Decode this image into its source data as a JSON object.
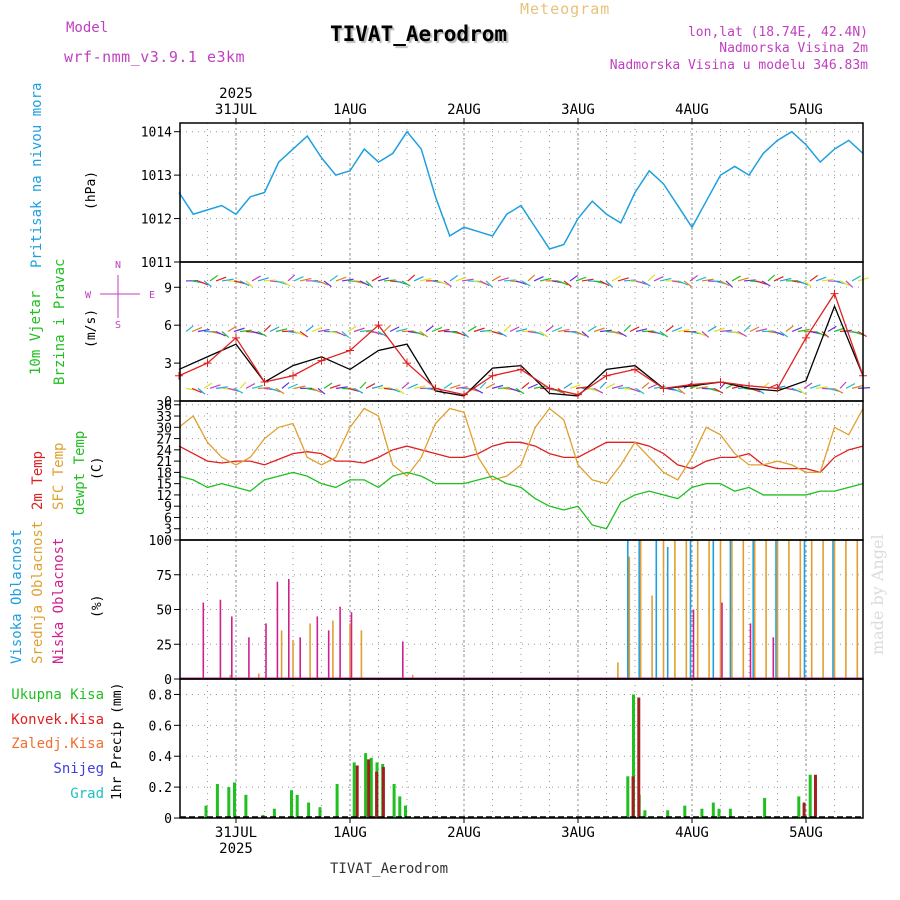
{
  "header": {
    "model_label": "Model",
    "model_name": "wrf-nmm_v3.9.1 e3km",
    "product": "Meteogram",
    "station": "TIVAT_Aerodrom",
    "lonlat": "lon,lat (18.74E, 42.4N)",
    "elev": "Nadmorska Visina 2m",
    "elev_model": "Nadmorska Visina u modelu 346.83m",
    "footer_station": "TIVAT_Aerodrom",
    "credit": "made by Angel"
  },
  "colors": {
    "magenta": "#c040c0",
    "blue": "#1ea0e0",
    "green": "#20c020",
    "orange": "#e0a030",
    "red": "#e02020",
    "purple": "#6030e0",
    "cyan": "#20c0c0"
  },
  "chart_data": [
    {
      "type": "line",
      "panel": "pressure",
      "title": "Pritisak na nivou mora",
      "ylabel": "(hPa)",
      "ylim": [
        1011,
        1014.2
      ],
      "yticks": [
        "1011",
        "1012",
        "1013",
        "1014"
      ],
      "xlabels_top": [
        "31JUL",
        "1AUG",
        "2AUG",
        "3AUG",
        "4AUG",
        "5AUG"
      ],
      "year": "2025",
      "x_days": [
        0,
        0.125,
        0.25,
        0.375,
        0.5,
        0.625,
        0.75,
        0.875,
        1,
        1.125,
        1.25,
        1.375,
        1.5,
        1.625,
        1.75,
        1.875,
        2,
        2.125,
        2.25,
        2.375,
        2.5,
        2.625,
        2.75,
        2.875,
        3,
        3.125,
        3.25,
        3.375,
        3.5,
        3.625,
        3.75,
        3.875,
        4,
        4.125,
        4.25,
        4.375,
        4.5,
        4.625,
        4.75,
        4.875,
        5,
        5.125,
        5.25,
        5.375,
        5.5,
        5.625,
        5.75,
        5.875,
        6
      ],
      "values": [
        1012.6,
        1012.1,
        1012.2,
        1012.3,
        1012.1,
        1012.5,
        1012.6,
        1013.3,
        1013.6,
        1013.9,
        1013.4,
        1013.0,
        1013.1,
        1013.6,
        1013.3,
        1013.5,
        1014.0,
        1013.6,
        1012.5,
        1011.6,
        1011.8,
        1011.7,
        1011.6,
        1012.1,
        1012.3,
        1011.8,
        1011.3,
        1011.4,
        1012.0,
        1012.4,
        1012.1,
        1011.9,
        1012.6,
        1013.1,
        1012.8,
        1012.3,
        1011.8,
        1012.4,
        1013.0,
        1013.2,
        1013.0,
        1013.5,
        1013.8,
        1014.0,
        1013.7,
        1013.3,
        1013.6,
        1013.8,
        1013.5
      ],
      "color": "#1ea0e0"
    },
    {
      "type": "line",
      "panel": "wind",
      "title": "10m Vjetar",
      "title2": "Brzina i Pravac",
      "ylabel": "(m/s)",
      "ylim": [
        0,
        11
      ],
      "yticks": [
        "0",
        "3",
        "6",
        "9"
      ],
      "compass": [
        "N",
        "W",
        "E",
        "S"
      ],
      "arrow_rows": [
        1,
        5.5,
        9.5
      ],
      "x_days": [
        0,
        0.25,
        0.5,
        0.75,
        1,
        1.25,
        1.5,
        1.75,
        2,
        2.25,
        2.5,
        2.75,
        3,
        3.25,
        3.5,
        3.75,
        4,
        4.25,
        4.5,
        4.75,
        5,
        5.25,
        5.5,
        5.75,
        6
      ],
      "speed": [
        2.5,
        3.5,
        4.5,
        1.5,
        2.8,
        3.5,
        2.5,
        4.0,
        4.5,
        0.8,
        0.4,
        2.6,
        2.8,
        0.6,
        0.4,
        2.5,
        2.8,
        1.0,
        1.2,
        1.5,
        1.0,
        0.8,
        1.6,
        7.5,
        2.0
      ],
      "gust": [
        2.0,
        3.0,
        5.0,
        1.5,
        2.0,
        3.2,
        4.0,
        6.0,
        3.0,
        1.0,
        0.5,
        2.0,
        2.5,
        1.0,
        0.5,
        2.0,
        2.5,
        1.0,
        1.3,
        1.5,
        1.2,
        1.0,
        5.0,
        8.5,
        2.0
      ],
      "speed_color": "#000000",
      "gust_color": "#e02020"
    },
    {
      "type": "line",
      "panel": "temperature",
      "titles": [
        "2m Temp",
        "SFC Temp",
        "dewpt Temp"
      ],
      "ylabel": "(C)",
      "ylim": [
        0,
        37
      ],
      "yticks": [
        "3",
        "6",
        "9",
        "12",
        "15",
        "18",
        "21",
        "24",
        "27",
        "30",
        "33",
        "36"
      ],
      "x_days": [
        0,
        0.125,
        0.25,
        0.375,
        0.5,
        0.625,
        0.75,
        0.875,
        1,
        1.125,
        1.25,
        1.375,
        1.5,
        1.625,
        1.75,
        1.875,
        2,
        2.125,
        2.25,
        2.375,
        2.5,
        2.625,
        2.75,
        2.875,
        3,
        3.125,
        3.25,
        3.375,
        3.5,
        3.625,
        3.75,
        3.875,
        4,
        4.125,
        4.25,
        4.375,
        4.5,
        4.625,
        4.75,
        4.875,
        5,
        5.125,
        5.25,
        5.375,
        5.5,
        5.625,
        5.75,
        5.875,
        6
      ],
      "series": [
        {
          "name": "2m Temp",
          "color": "#e02020",
          "values": [
            25,
            23,
            21,
            20.5,
            21,
            21,
            20,
            21.5,
            23,
            23.5,
            23,
            21,
            21,
            20.5,
            22,
            24,
            25,
            24,
            23,
            22,
            22,
            23,
            25,
            26,
            26,
            25,
            23,
            22,
            22,
            24,
            26,
            26,
            26,
            25,
            23,
            20,
            19,
            21,
            22,
            22,
            23,
            20,
            19,
            19,
            19,
            18,
            22,
            24,
            25
          ]
        },
        {
          "name": "SFC Temp",
          "color": "#e0a030",
          "values": [
            30,
            33,
            26,
            22,
            20,
            22,
            27,
            30,
            31,
            22,
            20,
            22,
            30,
            35,
            33,
            20,
            17,
            22,
            31,
            35,
            34,
            22,
            16,
            17,
            20,
            30,
            35,
            32,
            20,
            16,
            15,
            20,
            26,
            22,
            18,
            16,
            22,
            30,
            28,
            23,
            20,
            20,
            21,
            20,
            18,
            18,
            30,
            28,
            35
          ]
        },
        {
          "name": "dewpt Temp",
          "color": "#20c020",
          "values": [
            17,
            16,
            14,
            15,
            14,
            13,
            16,
            17,
            18,
            17,
            15,
            14,
            16,
            16,
            14,
            17,
            18,
            17,
            15,
            15,
            15,
            16,
            17,
            15,
            14,
            11,
            9,
            8,
            9,
            4,
            3,
            10,
            12,
            13,
            12,
            11,
            14,
            15,
            15,
            13,
            14,
            12,
            12,
            12,
            12,
            13,
            13,
            14,
            15
          ]
        }
      ]
    },
    {
      "type": "bar",
      "panel": "clouds",
      "titles": [
        "Visoka Oblacnost",
        "Srednja Oblacnost",
        "Niska Oblacnost"
      ],
      "ylabel": "(%)",
      "ylim": [
        0,
        100
      ],
      "yticks": [
        "0",
        "25",
        "50",
        "75",
        "100"
      ],
      "series": [
        {
          "name": "Visoka",
          "color": "#1ea0e0",
          "points": [
            [
              3.95,
              100
            ],
            [
              4.05,
              100
            ],
            [
              4.2,
              100
            ],
            [
              4.3,
              95
            ],
            [
              4.5,
              100
            ],
            [
              4.7,
              100
            ],
            [
              4.85,
              100
            ],
            [
              5.05,
              100
            ],
            [
              5.25,
              100
            ],
            [
              5.5,
              100
            ],
            [
              5.75,
              100
            ]
          ]
        },
        {
          "name": "Srednja",
          "color": "#e0a030",
          "points": [
            [
              0.45,
              3
            ],
            [
              0.7,
              4
            ],
            [
              0.9,
              35
            ],
            [
              1.0,
              28
            ],
            [
              1.15,
              40
            ],
            [
              1.35,
              42
            ],
            [
              1.5,
              40
            ],
            [
              1.6,
              35
            ],
            [
              2.05,
              3
            ],
            [
              3.85,
              12
            ],
            [
              3.95,
              88
            ],
            [
              4.05,
              100
            ],
            [
              4.15,
              60
            ],
            [
              4.25,
              100
            ],
            [
              4.35,
              100
            ],
            [
              4.45,
              100
            ],
            [
              4.55,
              100
            ],
            [
              4.65,
              100
            ],
            [
              4.75,
              100
            ],
            [
              4.85,
              100
            ],
            [
              4.95,
              100
            ],
            [
              5.05,
              100
            ],
            [
              5.15,
              100
            ],
            [
              5.25,
              100
            ],
            [
              5.35,
              100
            ],
            [
              5.45,
              100
            ],
            [
              5.55,
              100
            ],
            [
              5.65,
              100
            ],
            [
              5.75,
              100
            ],
            [
              5.85,
              100
            ],
            [
              5.95,
              100
            ]
          ]
        },
        {
          "name": "Niska",
          "color": "#d02090",
          "points": [
            [
              0.2,
              55
            ],
            [
              0.35,
              57
            ],
            [
              0.45,
              45
            ],
            [
              0.6,
              30
            ],
            [
              0.75,
              40
            ],
            [
              0.85,
              70
            ],
            [
              0.95,
              72
            ],
            [
              1.05,
              30
            ],
            [
              1.2,
              45
            ],
            [
              1.3,
              35
            ],
            [
              1.4,
              52
            ],
            [
              1.5,
              48
            ],
            [
              1.95,
              27
            ],
            [
              4.5,
              50
            ],
            [
              4.75,
              55
            ],
            [
              5.0,
              40
            ],
            [
              5.2,
              30
            ]
          ]
        }
      ]
    },
    {
      "type": "bar",
      "panel": "precip",
      "titles": [
        "Ukupna Kisa",
        "Konvek.Kisa",
        "Zaledj.Kisa",
        "Snijeg",
        "Grad"
      ],
      "ylabel": "1hr Precip (mm)",
      "ylim": [
        0,
        0.9
      ],
      "yticks": [
        "0",
        "0.2",
        "0.4",
        "0.6",
        "0.8"
      ],
      "xlabels_bottom": [
        "31JUL",
        "1AUG",
        "2AUG",
        "3AUG",
        "4AUG",
        "5AUG"
      ],
      "year": "2025",
      "series": [
        {
          "name": "Ukupna Kisa",
          "color": "#20c020",
          "points": [
            [
              0.25,
              0.08
            ],
            [
              0.35,
              0.22
            ],
            [
              0.45,
              0.2
            ],
            [
              0.5,
              0.23
            ],
            [
              0.6,
              0.15
            ],
            [
              0.75,
              0.02
            ],
            [
              0.85,
              0.06
            ],
            [
              1.0,
              0.18
            ],
            [
              1.05,
              0.15
            ],
            [
              1.15,
              0.1
            ],
            [
              1.25,
              0.07
            ],
            [
              1.4,
              0.22
            ],
            [
              1.55,
              0.36
            ],
            [
              1.65,
              0.42
            ],
            [
              1.7,
              0.39
            ],
            [
              1.75,
              0.36
            ],
            [
              1.8,
              0.35
            ],
            [
              1.9,
              0.22
            ],
            [
              1.95,
              0.14
            ],
            [
              2.0,
              0.08
            ],
            [
              3.95,
              0.27
            ],
            [
              4.0,
              0.8
            ],
            [
              4.05,
              0.15
            ],
            [
              4.1,
              0.05
            ],
            [
              4.3,
              0.05
            ],
            [
              4.45,
              0.08
            ],
            [
              4.6,
              0.06
            ],
            [
              4.7,
              0.1
            ],
            [
              4.75,
              0.06
            ],
            [
              4.85,
              0.06
            ],
            [
              5.15,
              0.13
            ],
            [
              5.45,
              0.14
            ],
            [
              5.55,
              0.28
            ]
          ]
        },
        {
          "name": "Konvek.Kisa",
          "color": "#a02020",
          "points": [
            [
              1.55,
              0.34
            ],
            [
              1.65,
              0.38
            ],
            [
              1.72,
              0.3
            ],
            [
              1.78,
              0.33
            ],
            [
              3.97,
              0.27
            ],
            [
              4.02,
              0.78
            ],
            [
              5.47,
              0.1
            ],
            [
              5.57,
              0.28
            ]
          ]
        }
      ]
    }
  ]
}
